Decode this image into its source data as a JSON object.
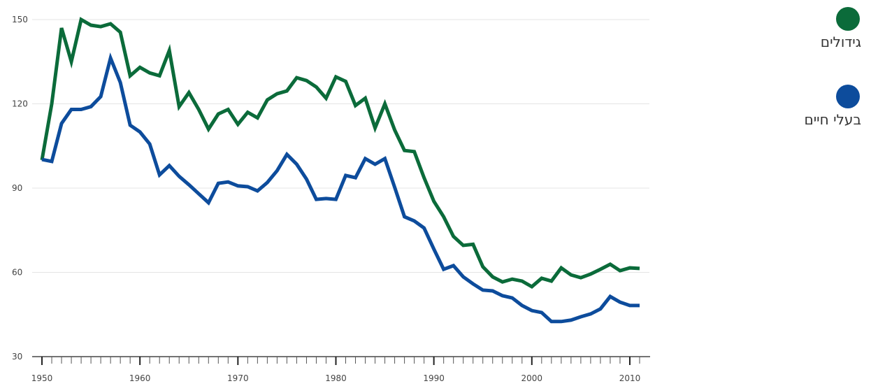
{
  "chart_data": {
    "type": "line",
    "x": [
      1950,
      1951,
      1952,
      1953,
      1954,
      1955,
      1956,
      1957,
      1958,
      1959,
      1960,
      1961,
      1962,
      1963,
      1964,
      1965,
      1966,
      1967,
      1968,
      1969,
      1970,
      1971,
      1972,
      1973,
      1974,
      1975,
      1976,
      1977,
      1978,
      1979,
      1980,
      1981,
      1982,
      1983,
      1984,
      1985,
      1986,
      1987,
      1988,
      1989,
      1990,
      1991,
      1992,
      1993,
      1994,
      1995,
      1996,
      1997,
      1998,
      1999,
      2000,
      2001,
      2002,
      2003,
      2004,
      2005,
      2006,
      2007,
      2008,
      2009,
      2010,
      2011
    ],
    "series": [
      {
        "name": "גידולים",
        "color": "#0b6b3a",
        "values": [
          100,
          120,
          147,
          135,
          150,
          148,
          147.5,
          148.5,
          145.5,
          130,
          133,
          131,
          130,
          139,
          119,
          124,
          118,
          111,
          116.4,
          118,
          112.7,
          117,
          115,
          121.4,
          123.6,
          124.6,
          129.3,
          128.3,
          126,
          122,
          129.6,
          128,
          119.4,
          122,
          111.4,
          120,
          110.7,
          103.4,
          103,
          93.7,
          85.3,
          79.8,
          72.8,
          69.6,
          70,
          62,
          58.4,
          56.6,
          57.6,
          56.9,
          54.9,
          57.9,
          56.9,
          61.6,
          59.1,
          58.1,
          59.4,
          61.1,
          62.9,
          60.6,
          61.6,
          61.4
        ]
      },
      {
        "name": "בעלי חיים",
        "color": "#0d4c9c",
        "values": [
          100.2,
          99.5,
          113,
          118,
          118,
          119,
          122.6,
          136.3,
          127.6,
          112.4,
          110,
          105.7,
          94.7,
          98,
          94.2,
          91.2,
          88,
          84.8,
          91.7,
          92.2,
          90.8,
          90.5,
          89,
          92,
          96.2,
          102,
          98.5,
          93.2,
          86,
          86.3,
          86,
          94.5,
          93.7,
          100.5,
          98.5,
          100.5,
          90.3,
          79.8,
          78.3,
          75.8,
          68.3,
          61.1,
          62.4,
          58.4,
          55.9,
          53.7,
          53.4,
          51.7,
          50.9,
          48.2,
          46.4,
          45.7,
          42.5,
          42.5,
          43,
          44.2,
          45.2,
          47,
          51.4,
          49.4,
          48.2,
          48.2
        ]
      }
    ],
    "xlim": [
      1949,
      2012
    ],
    "xticks": [
      1950,
      1960,
      1970,
      1980,
      1990,
      2000,
      2010
    ],
    "ylim": [
      30,
      150
    ],
    "yticks": [
      30,
      60,
      90,
      120,
      150
    ],
    "grid": true,
    "legend": "right"
  }
}
